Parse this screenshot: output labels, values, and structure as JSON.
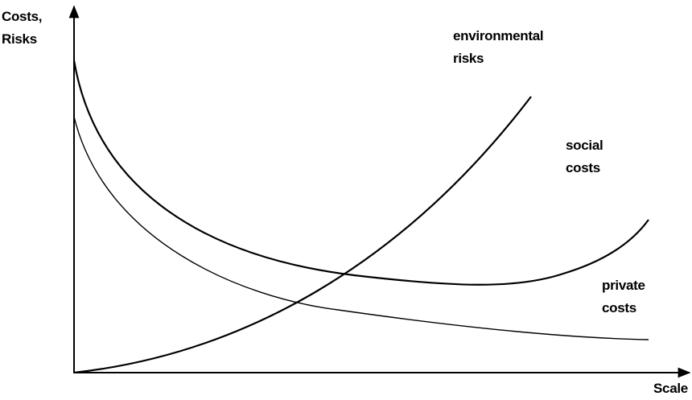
{
  "y_axis": {
    "label": [
      "Costs,",
      "Risks"
    ]
  },
  "x_axis": {
    "label": "Scale"
  },
  "curves": [
    {
      "label": [
        "environmental",
        "risks"
      ]
    },
    {
      "label": [
        "social",
        "costs"
      ]
    },
    {
      "label": [
        "private",
        "costs"
      ]
    }
  ]
}
